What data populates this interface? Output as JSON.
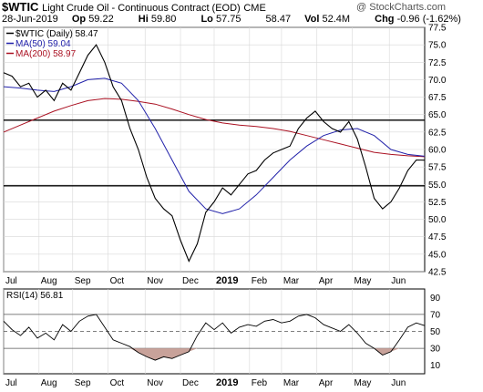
{
  "header": {
    "symbol": "$WTIC",
    "description": "Light Crude Oil - Continuous Contract (EOD)",
    "exchange": "CME",
    "copyright": "@ StockCharts.com",
    "date": "28-Jun-2019",
    "op_label": "Op",
    "op": "59.22",
    "hi_label": "Hi",
    "hi": "59.80",
    "lo_label": "Lo",
    "lo": "57.75",
    "close": "58.47",
    "vol_label": "Vol",
    "vol": "52.4M",
    "chg_label": "Chg",
    "chg": "-0.96 (-1.62%)"
  },
  "colors": {
    "price": "#000000",
    "ma50": "#2222aa",
    "ma200": "#aa1122",
    "grid": "#d8d8d8",
    "rsi_fill": "#c8a29a"
  },
  "chart_data": [
    {
      "type": "line",
      "title": "Light Crude Oil - Continuous Contract (EOD)",
      "legend": [
        "$WTIC (Daily) 58.47",
        "MA(50) 59.04",
        "MA(200) 58.97"
      ],
      "legend_placement": "top-left",
      "ylim": [
        42.5,
        77.5
      ],
      "y_ticks": [
        "77.5",
        "75.0",
        "72.5",
        "70.0",
        "67.5",
        "65.0",
        "62.5",
        "60.0",
        "57.5",
        "55.0",
        "52.5",
        "50.0",
        "47.5",
        "45.0",
        "42.5"
      ],
      "x_ticks": [
        "Jul",
        "Aug",
        "Sep",
        "Oct",
        "Nov",
        "Dec",
        "2019",
        "Feb",
        "Mar",
        "Apr",
        "May",
        "Jun"
      ],
      "grid": true,
      "horizontal_lines": [
        64.2,
        54.8
      ],
      "series": [
        {
          "name": "$WTIC (Daily)",
          "t": [
            0,
            5,
            10,
            15,
            20,
            25,
            30,
            35,
            40,
            45,
            50,
            55,
            60,
            65,
            70,
            75,
            80,
            85,
            90,
            95,
            100,
            105,
            110,
            115,
            120,
            125,
            130,
            135,
            140,
            145,
            150,
            155,
            160,
            165,
            170,
            175,
            180,
            185,
            190,
            195,
            200,
            205,
            210,
            215,
            220,
            225,
            230,
            235,
            240,
            245,
            250
          ],
          "values": [
            71.0,
            70.5,
            69.0,
            69.5,
            67.5,
            68.5,
            67.0,
            69.5,
            68.5,
            71.0,
            73.5,
            75.0,
            72.5,
            69.0,
            67.0,
            63.0,
            60.0,
            56.0,
            53.0,
            51.5,
            50.5,
            47.0,
            44.0,
            46.5,
            51.0,
            52.5,
            54.5,
            53.5,
            55.0,
            56.5,
            57.0,
            58.5,
            59.5,
            60.0,
            60.5,
            63.0,
            64.5,
            65.5,
            64.0,
            63.0,
            62.5,
            64.0,
            61.5,
            57.5,
            53.0,
            51.5,
            52.5,
            54.5,
            57.0,
            58.5,
            58.47
          ]
        },
        {
          "name": "MA(50)",
          "t": [
            0,
            10,
            20,
            30,
            40,
            50,
            60,
            70,
            80,
            90,
            100,
            110,
            120,
            130,
            140,
            150,
            160,
            170,
            180,
            190,
            200,
            210,
            220,
            230,
            240,
            250
          ],
          "values": [
            69.0,
            68.8,
            68.5,
            68.3,
            69.0,
            70.0,
            70.2,
            69.5,
            67.0,
            63.0,
            58.5,
            54.0,
            51.5,
            50.8,
            51.5,
            53.5,
            56.0,
            58.5,
            60.5,
            62.0,
            62.8,
            63.0,
            62.0,
            60.0,
            59.3,
            59.04
          ]
        },
        {
          "name": "MA(200)",
          "t": [
            0,
            10,
            20,
            30,
            40,
            50,
            60,
            70,
            80,
            90,
            100,
            110,
            120,
            130,
            140,
            150,
            160,
            170,
            180,
            190,
            200,
            210,
            220,
            230,
            240,
            250
          ],
          "values": [
            62.5,
            63.5,
            64.5,
            65.5,
            66.3,
            67.0,
            67.3,
            67.2,
            66.9,
            66.5,
            65.8,
            65.0,
            64.3,
            63.8,
            63.5,
            63.3,
            63.0,
            62.6,
            62.0,
            61.4,
            60.8,
            60.2,
            59.6,
            59.3,
            59.1,
            58.97
          ]
        }
      ]
    },
    {
      "type": "line",
      "legend": [
        "RSI(14) 56.81"
      ],
      "ylim": [
        0,
        100
      ],
      "y_ticks": [
        "90",
        "70",
        "50",
        "30",
        "10"
      ],
      "reference_lines": [
        70,
        50,
        30
      ],
      "x_ticks": [
        "Jul",
        "Aug",
        "Sep",
        "Oct",
        "Nov",
        "Dec",
        "2019",
        "Feb",
        "Mar",
        "Apr",
        "May",
        "Jun"
      ],
      "series": [
        {
          "name": "RSI(14)",
          "t": [
            0,
            5,
            10,
            15,
            20,
            25,
            30,
            35,
            40,
            45,
            50,
            55,
            60,
            65,
            70,
            75,
            80,
            85,
            90,
            95,
            100,
            105,
            110,
            115,
            120,
            125,
            130,
            135,
            140,
            145,
            150,
            155,
            160,
            165,
            170,
            175,
            180,
            185,
            190,
            195,
            200,
            205,
            210,
            215,
            220,
            225,
            230,
            235,
            240,
            245,
            250
          ],
          "values": [
            62,
            52,
            45,
            55,
            42,
            48,
            40,
            58,
            50,
            62,
            68,
            70,
            55,
            40,
            36,
            32,
            25,
            20,
            16,
            20,
            18,
            22,
            26,
            45,
            60,
            52,
            60,
            48,
            55,
            58,
            56,
            62,
            64,
            60,
            62,
            68,
            70,
            66,
            58,
            54,
            50,
            58,
            48,
            36,
            30,
            22,
            26,
            40,
            55,
            60,
            56.81
          ]
        }
      ]
    }
  ]
}
